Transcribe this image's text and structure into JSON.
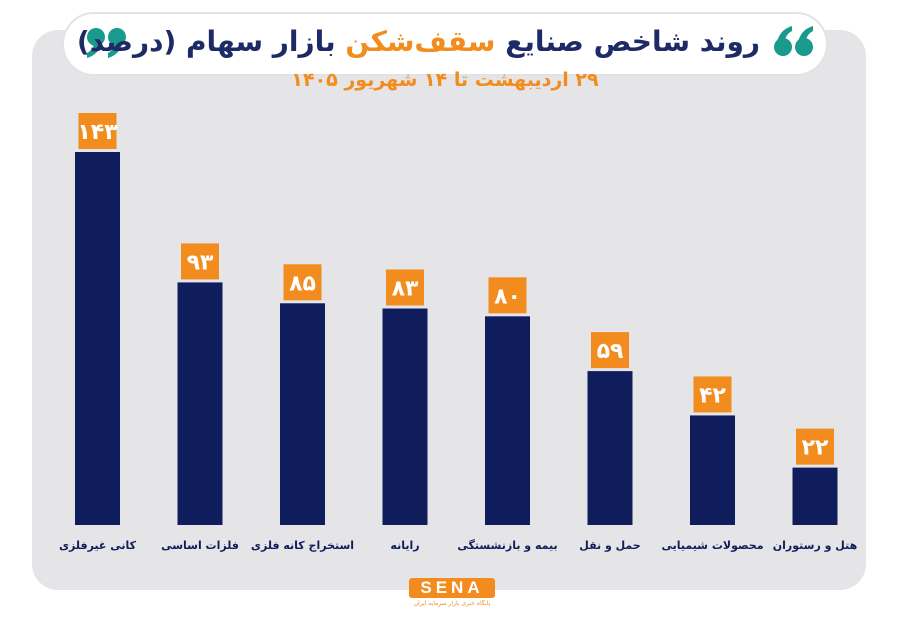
{
  "title": {
    "before": "روند شاخص صنایع ",
    "highlight": "سقف‌شکن",
    "after": " بازار سهام (درصد)"
  },
  "subtitle": "۲۹ اردیبهشت تا ۱۴ شهریور ۱۴۰۵",
  "colors": {
    "bar": "#0f1d5c",
    "label_bg": "#f28c1e",
    "label_text": "#ffffff",
    "accent": "#1a9a8c",
    "panel": "#e5e5e7"
  },
  "logo": {
    "word": "SENA",
    "tagline": "پایگاه خبری بازار سرمایه ایران"
  },
  "chart_data": {
    "type": "bar",
    "categories": [
      "کانی غیرفلزی",
      "فلزات اساسی",
      "استخراج کانه فلزی",
      "رایانه",
      "بیمه و بازنشستگی",
      "حمل و نقل",
      "محصولات شیمیایی",
      "هتل و رستوران"
    ],
    "values": [
      143,
      93,
      85,
      83,
      80,
      59,
      42,
      22
    ],
    "value_labels": [
      "۱۴۳",
      "۹۳",
      "۸۵",
      "۸۳",
      "۸۰",
      "۵۹",
      "۴۲",
      "۲۲"
    ],
    "ylim": [
      0,
      143
    ],
    "grid": false,
    "legend": "none"
  }
}
